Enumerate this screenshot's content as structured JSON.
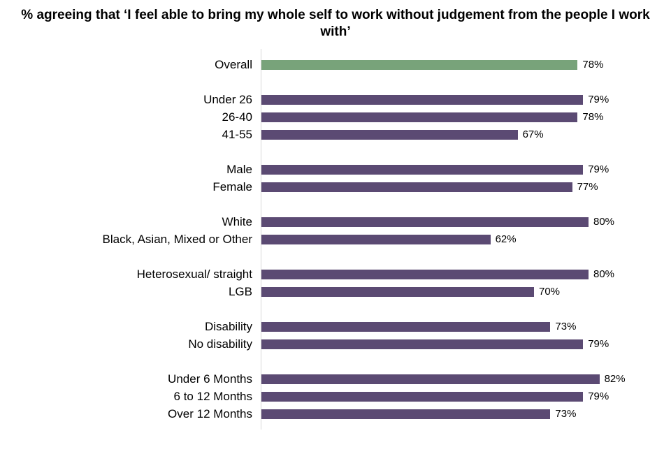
{
  "title": "% agreeing that ‘I feel able to bring my whole self to work without judgement from the people I work with’",
  "colors": {
    "overall_bar": "#78A37A",
    "group_bar": "#5B4A73",
    "axis_line": "#D9D9D9",
    "text": "#000000",
    "background": "#FFFFFF"
  },
  "chart_data": {
    "type": "bar",
    "orientation": "horizontal",
    "title": "% agreeing that ‘I feel able to bring my whole self to work without judgement from the people I work with’",
    "value_suffix": "%",
    "xlim": [
      20,
      100
    ],
    "grid": false,
    "legend": false,
    "axis_tick_labels_visible": false,
    "groups": [
      {
        "items": [
          {
            "label": "Overall",
            "value": 78,
            "display": "78%",
            "color": "overall"
          }
        ]
      },
      {
        "items": [
          {
            "label": "Under 26",
            "value": 79,
            "display": "79%",
            "color": "group"
          },
          {
            "label": "26-40",
            "value": 78,
            "display": "78%",
            "color": "group"
          },
          {
            "label": "41-55",
            "value": 67,
            "display": "67%",
            "color": "group"
          }
        ]
      },
      {
        "items": [
          {
            "label": "Male",
            "value": 79,
            "display": "79%",
            "color": "group"
          },
          {
            "label": "Female",
            "value": 77,
            "display": "77%",
            "color": "group"
          }
        ]
      },
      {
        "items": [
          {
            "label": "White",
            "value": 80,
            "display": "80%",
            "color": "group"
          },
          {
            "label": "Black, Asian, Mixed or Other",
            "value": 62,
            "display": "62%",
            "color": "group"
          }
        ]
      },
      {
        "items": [
          {
            "label": "Heterosexual/ straight",
            "value": 80,
            "display": "80%",
            "color": "group"
          },
          {
            "label": "LGB",
            "value": 70,
            "display": "70%",
            "color": "group"
          }
        ]
      },
      {
        "items": [
          {
            "label": "Disability",
            "value": 73,
            "display": "73%",
            "color": "group"
          },
          {
            "label": "No disability",
            "value": 79,
            "display": "79%",
            "color": "group"
          }
        ]
      },
      {
        "items": [
          {
            "label": "Under 6 Months",
            "value": 82,
            "display": "82%",
            "color": "group"
          },
          {
            "label": "6 to 12 Months",
            "value": 79,
            "display": "79%",
            "color": "group"
          },
          {
            "label": "Over 12 Months",
            "value": 73,
            "display": "73%",
            "color": "group"
          }
        ]
      }
    ]
  }
}
